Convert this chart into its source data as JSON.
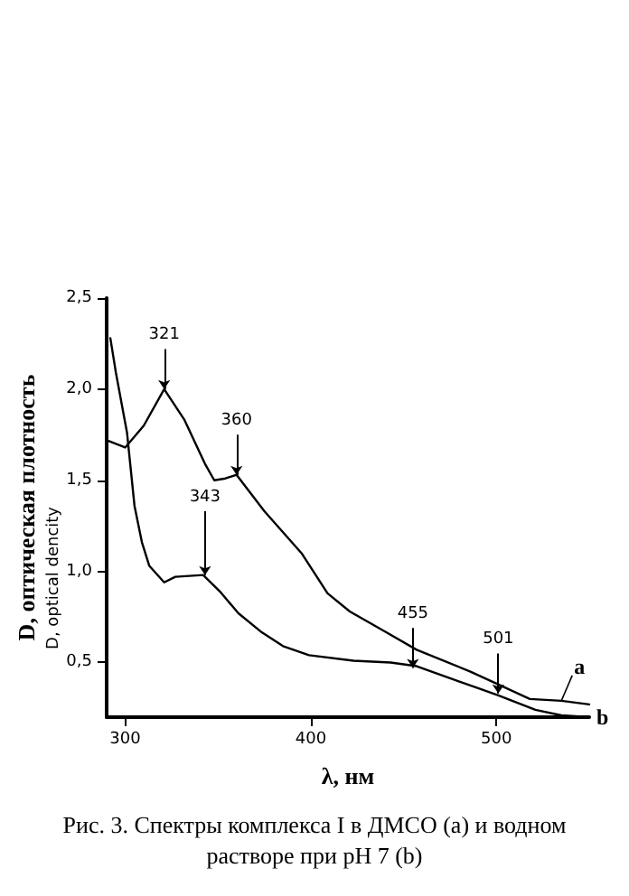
{
  "chart_data": {
    "type": "line",
    "title": "Рис. 3. Спектры комплекса I в ДМСО (a) и водном растворе при pH 7 (b)",
    "xlabel": "λ, нм",
    "ylabel": "D, оптическая плотность",
    "annotations": [
      "D, optical dencity",
      {
        "text": "321",
        "x": 321,
        "y": 2.0
      },
      {
        "text": "360",
        "x": 360,
        "y": 1.53
      },
      {
        "text": "343",
        "x": 343,
        "y": 0.98
      },
      {
        "text": "455",
        "x": 455,
        "y": 0.47
      },
      {
        "text": "501",
        "x": 501,
        "y": 0.33
      }
    ],
    "series": [
      {
        "name": "a",
        "color": "#000000",
        "x": [
          290,
          300,
          310,
          321,
          332,
          343,
          348,
          354,
          360,
          375,
          395,
          409,
          421,
          440,
          457,
          486,
          503,
          518,
          535,
          550
        ],
        "values": [
          1.72,
          1.68,
          1.8,
          2.0,
          1.83,
          1.59,
          1.5,
          1.51,
          1.53,
          1.33,
          1.1,
          0.88,
          0.78,
          0.67,
          0.57,
          0.45,
          0.37,
          0.3,
          0.29,
          0.27
        ]
      },
      {
        "name": "b",
        "color": "#000000",
        "x": [
          292,
          295,
          301,
          305,
          309,
          313,
          321,
          327,
          342,
          351,
          361,
          373,
          385,
          399,
          423,
          443,
          457,
          476,
          501,
          521,
          535,
          550
        ],
        "values": [
          2.28,
          2.09,
          1.76,
          1.36,
          1.16,
          1.03,
          0.94,
          0.97,
          0.98,
          0.89,
          0.77,
          0.67,
          0.59,
          0.54,
          0.51,
          0.5,
          0.48,
          0.41,
          0.32,
          0.24,
          0.21,
          0.2
        ]
      }
    ],
    "xlim": [
      290,
      550
    ],
    "xticks": [
      300,
      400,
      500
    ],
    "ylim": [
      0.2,
      2.5
    ],
    "yticks": [
      {
        "value": 0.5,
        "label": "0,5"
      },
      {
        "value": 1.0,
        "label": "1,0"
      },
      {
        "value": 1.5,
        "label": "1,5"
      },
      {
        "value": 2.0,
        "label": "2,0"
      },
      {
        "value": 2.5,
        "label": "2,5"
      }
    ],
    "grid": false,
    "legend": false,
    "marker": "none",
    "line_style": "solid"
  }
}
